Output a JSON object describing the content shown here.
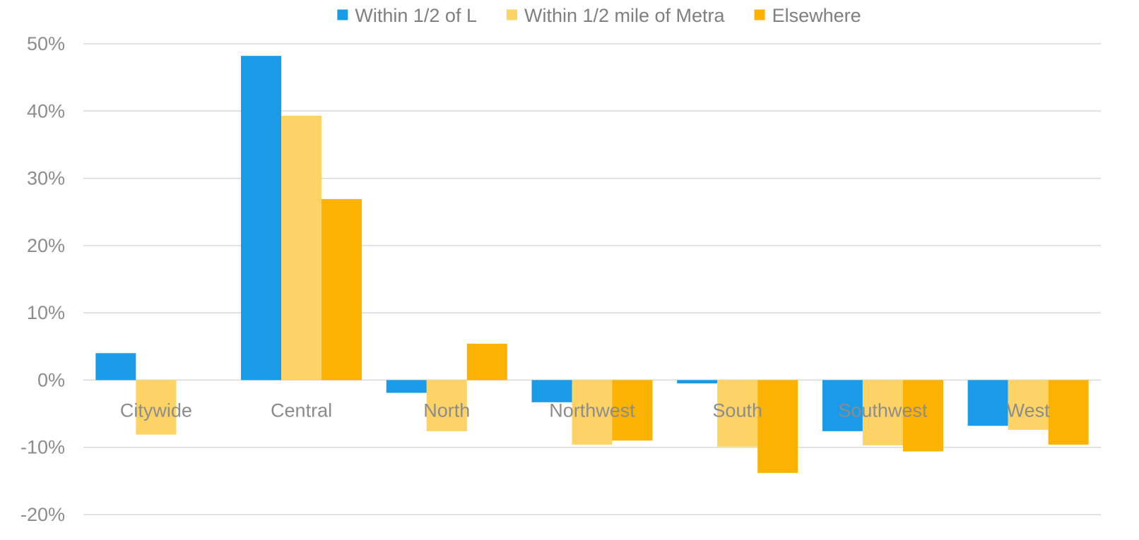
{
  "chart_data": {
    "type": "bar",
    "categories": [
      "Citywide",
      "Central",
      "North",
      "Northwest",
      "South",
      "Southwest",
      "West"
    ],
    "series": [
      {
        "name": "Within 1/2 of L",
        "color": "#1a9be8",
        "values": [
          4.0,
          48.2,
          -1.9,
          -3.3,
          -0.5,
          -7.6,
          -6.8
        ]
      },
      {
        "name": "Within 1/2 mile of Metra",
        "color": "#fdd366",
        "values": [
          -8.1,
          39.3,
          -7.6,
          -9.6,
          -9.9,
          -9.7,
          -7.4
        ]
      },
      {
        "name": "Elsewhere",
        "color": "#fbb200",
        "values": [
          null,
          26.9,
          5.4,
          -9.0,
          -13.8,
          -10.6,
          -9.6
        ]
      }
    ],
    "yticks": [
      "50%",
      "40%",
      "30%",
      "20%",
      "10%",
      "0%",
      "-10%",
      "-20%"
    ],
    "ylim": [
      -20,
      50
    ],
    "ylabel": "",
    "xlabel": "",
    "title": "",
    "grid": true,
    "legend": "top-center"
  }
}
